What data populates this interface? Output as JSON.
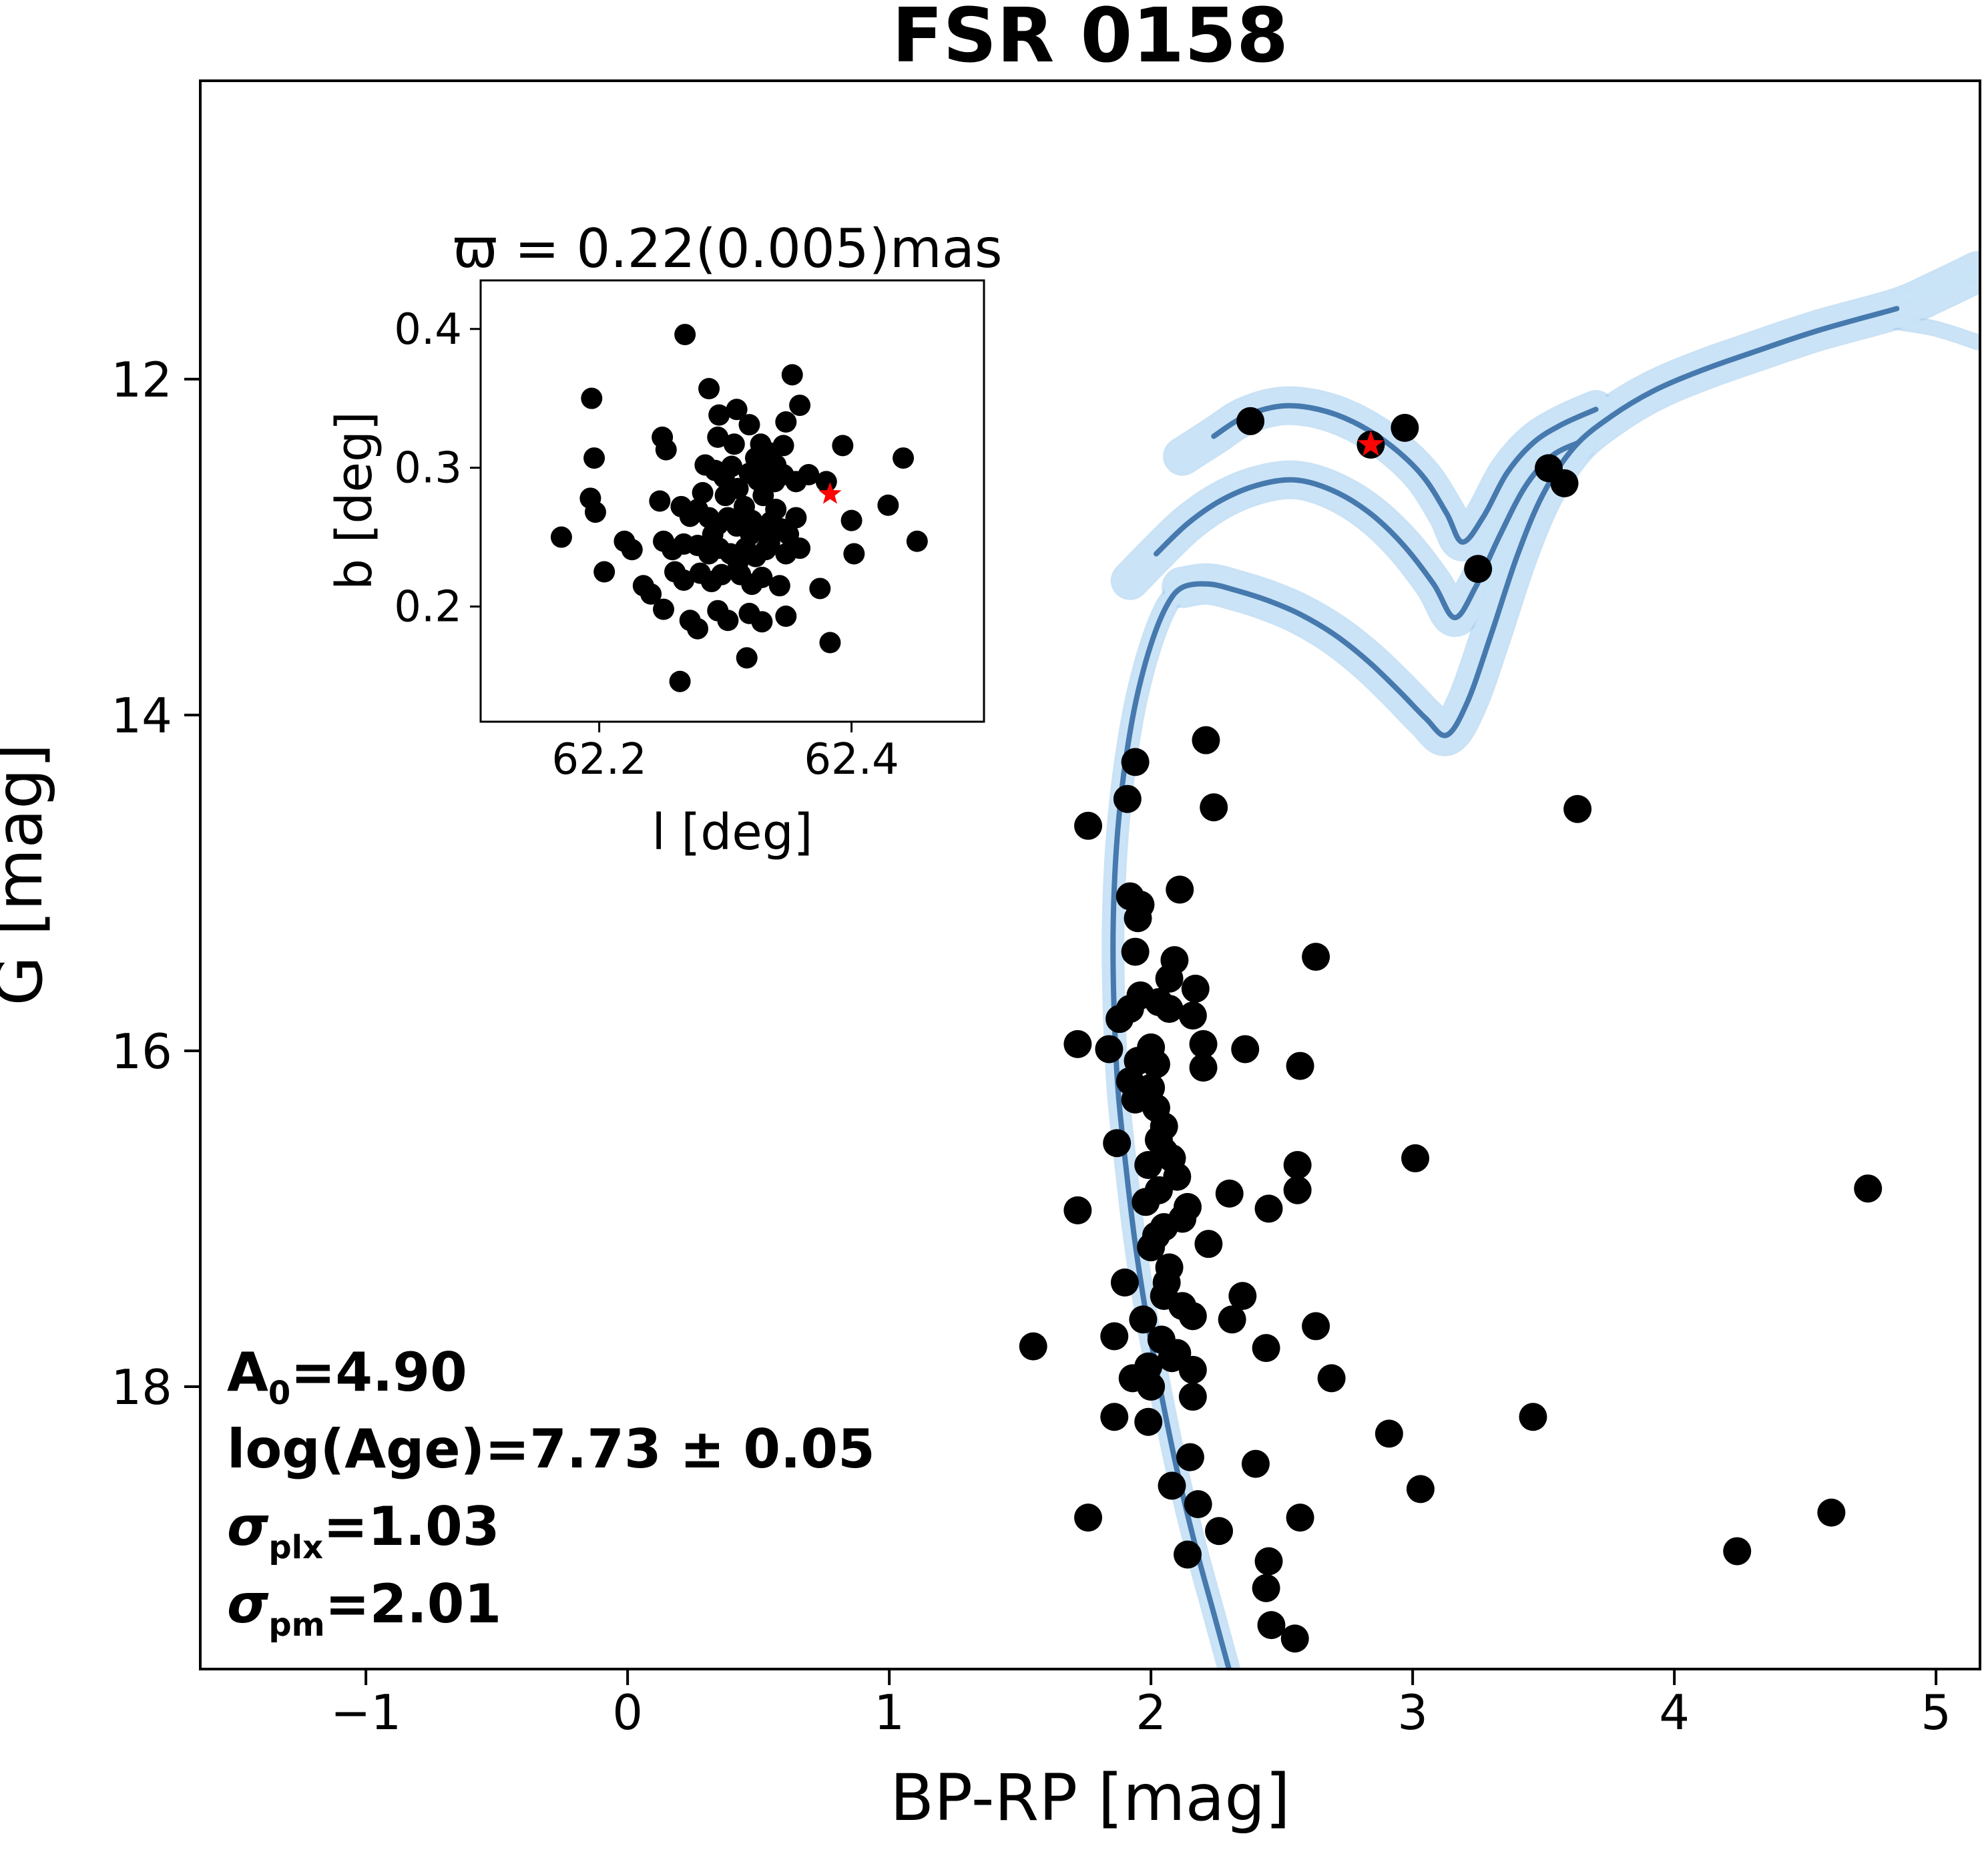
{
  "title": "FSR 0158",
  "colors": {
    "background": "#ffffff",
    "marker": "#000000",
    "star": "#fb0505",
    "isochrone_line": "#4679ad",
    "isochrone_band": "#c9e3f7",
    "isochrone_band_edge": "#9fcbed",
    "axis": "#000000"
  },
  "fit_parameters": {
    "A0": "4.90",
    "log_age": "7.73 ± 0.05",
    "sigma_plx": "1.03",
    "sigma_pm": "2.01",
    "lines": [
      [
        {
          "text": "A"
        },
        {
          "text": "0",
          "sub": true
        },
        {
          "text": "=4.90"
        }
      ],
      [
        {
          "text": "log(Age)=7.73 ± 0.05"
        }
      ],
      [
        {
          "text": "σ",
          "italic": true
        },
        {
          "text": "plx",
          "sub": true
        },
        {
          "text": "=1.03"
        }
      ],
      [
        {
          "text": "σ",
          "italic": true
        },
        {
          "text": "pm",
          "sub": true
        },
        {
          "text": "=2.01"
        }
      ]
    ]
  },
  "chart_data": [
    {
      "type": "scatter",
      "name": "color-magnitude-diagram",
      "title": "FSR 0158",
      "xlabel": "BP-RP [mag]",
      "ylabel": "G [mag]",
      "xlim": [
        -1.633,
        5.168
      ],
      "ylim": [
        19.682,
        10.223
      ],
      "y_inverted": true,
      "grid": false,
      "xticks": {
        "values": [
          -1,
          0,
          1,
          2,
          3,
          4,
          5
        ],
        "labels": [
          "−1",
          "0",
          "1",
          "2",
          "3",
          "4",
          "5"
        ]
      },
      "yticks": {
        "values": [
          12,
          14,
          16,
          18
        ],
        "labels": [
          "12",
          "14",
          "16",
          "18"
        ]
      },
      "cluster_star": {
        "x": 2.84,
        "y": 12.39
      },
      "points": [
        [
          2.38,
          12.25
        ],
        [
          2.97,
          12.29
        ],
        [
          3.52,
          12.53
        ],
        [
          3.58,
          12.62
        ],
        [
          3.25,
          13.13
        ],
        [
          2.21,
          14.15
        ],
        [
          1.94,
          14.28
        ],
        [
          1.76,
          14.66
        ],
        [
          1.91,
          14.5
        ],
        [
          2.24,
          14.55
        ],
        [
          3.63,
          14.56
        ],
        [
          2.11,
          15.04
        ],
        [
          1.92,
          15.08
        ],
        [
          1.96,
          15.13
        ],
        [
          1.95,
          15.21
        ],
        [
          1.94,
          15.41
        ],
        [
          2.09,
          15.46
        ],
        [
          2.63,
          15.44
        ],
        [
          2.07,
          15.57
        ],
        [
          2.17,
          15.63
        ],
        [
          1.96,
          15.67
        ],
        [
          2.03,
          15.71
        ],
        [
          1.92,
          15.75
        ],
        [
          2.07,
          15.75
        ],
        [
          2.16,
          15.79
        ],
        [
          1.88,
          15.81
        ],
        [
          1.72,
          15.96
        ],
        [
          1.84,
          15.99
        ],
        [
          2.36,
          15.99
        ],
        [
          2.2,
          15.96
        ],
        [
          2.0,
          15.98
        ],
        [
          1.95,
          16.06
        ],
        [
          2.02,
          16.08
        ],
        [
          2.2,
          16.1
        ],
        [
          2.57,
          16.09
        ],
        [
          1.92,
          16.18
        ],
        [
          2.0,
          16.22
        ],
        [
          1.94,
          16.29
        ],
        [
          2.02,
          16.34
        ],
        [
          1.87,
          16.55
        ],
        [
          2.03,
          16.53
        ],
        [
          2.08,
          16.64
        ],
        [
          1.99,
          16.68
        ],
        [
          2.05,
          16.45
        ],
        [
          2.05,
          16.6
        ],
        [
          2.03,
          16.83
        ],
        [
          2.14,
          16.93
        ],
        [
          2.3,
          16.85
        ],
        [
          2.45,
          16.94
        ],
        [
          2.56,
          16.68
        ],
        [
          2.56,
          16.83
        ],
        [
          3.01,
          16.64
        ],
        [
          1.72,
          16.95
        ],
        [
          2.1,
          16.75
        ],
        [
          1.98,
          16.9
        ],
        [
          2.05,
          17.05
        ],
        [
          2.0,
          17.17
        ],
        [
          2.22,
          17.15
        ],
        [
          2.12,
          17.0
        ],
        [
          2.02,
          17.1
        ],
        [
          2.07,
          17.29
        ],
        [
          1.9,
          17.38
        ],
        [
          2.05,
          17.46
        ],
        [
          2.35,
          17.46
        ],
        [
          2.06,
          17.38
        ],
        [
          2.16,
          17.58
        ],
        [
          2.31,
          17.6
        ],
        [
          1.86,
          17.7
        ],
        [
          2.63,
          17.64
        ],
        [
          2.44,
          17.77
        ],
        [
          1.55,
          17.76
        ],
        [
          2.12,
          17.52
        ],
        [
          1.97,
          17.6
        ],
        [
          2.04,
          17.72
        ],
        [
          2.08,
          17.83
        ],
        [
          2.16,
          17.9
        ],
        [
          1.93,
          17.95
        ],
        [
          2.0,
          18.0
        ],
        [
          2.69,
          17.95
        ],
        [
          2.1,
          17.8
        ],
        [
          1.99,
          17.88
        ],
        [
          2.16,
          18.06
        ],
        [
          1.86,
          18.18
        ],
        [
          1.99,
          18.21
        ],
        [
          2.91,
          18.28
        ],
        [
          3.46,
          18.18
        ],
        [
          2.15,
          18.42
        ],
        [
          2.4,
          18.46
        ],
        [
          3.03,
          18.61
        ],
        [
          2.08,
          18.59
        ],
        [
          2.18,
          18.7
        ],
        [
          1.76,
          18.78
        ],
        [
          2.26,
          18.86
        ],
        [
          2.57,
          18.78
        ],
        [
          2.14,
          19.0
        ],
        [
          2.45,
          19.04
        ],
        [
          2.44,
          19.2
        ],
        [
          2.46,
          19.42
        ],
        [
          2.55,
          19.5
        ],
        [
          4.74,
          16.82
        ],
        [
          4.24,
          18.98
        ],
        [
          4.6,
          18.75
        ]
      ],
      "isochrones": {
        "ms": [
          [
            2.31,
            19.75
          ],
          [
            2.24,
            19.35
          ],
          [
            2.17,
            18.95
          ],
          [
            2.1,
            18.5
          ],
          [
            2.04,
            18.05
          ],
          [
            1.985,
            17.6
          ],
          [
            1.94,
            17.15
          ],
          [
            1.905,
            16.7
          ],
          [
            1.875,
            16.25
          ],
          [
            1.86,
            15.8
          ],
          [
            1.855,
            15.35
          ],
          [
            1.862,
            14.95
          ],
          [
            1.878,
            14.6
          ],
          [
            1.905,
            14.25
          ],
          [
            1.945,
            13.9
          ],
          [
            2.0,
            13.58
          ],
          [
            2.06,
            13.35
          ],
          [
            2.12,
            13.24
          ]
        ],
        "wiggle_low": [
          [
            2.12,
            13.24
          ],
          [
            2.22,
            13.22
          ],
          [
            2.33,
            13.26
          ],
          [
            2.45,
            13.32
          ],
          [
            2.57,
            13.4
          ],
          [
            2.7,
            13.52
          ],
          [
            2.83,
            13.68
          ],
          [
            2.95,
            13.86
          ],
          [
            3.05,
            14.02
          ],
          [
            3.13,
            14.12
          ],
          [
            3.21,
            13.92
          ],
          [
            3.3,
            13.52
          ],
          [
            3.4,
            13.05
          ],
          [
            3.5,
            12.68
          ],
          [
            3.62,
            12.4
          ],
          [
            3.76,
            12.22
          ],
          [
            3.92,
            12.07
          ],
          [
            4.1,
            11.95
          ],
          [
            4.3,
            11.84
          ],
          [
            4.55,
            11.71
          ],
          [
            4.85,
            11.58
          ]
        ],
        "wiggle_mid": [
          [
            2.02,
            13.04
          ],
          [
            2.14,
            12.86
          ],
          [
            2.27,
            12.72
          ],
          [
            2.41,
            12.63
          ],
          [
            2.55,
            12.6
          ],
          [
            2.69,
            12.66
          ],
          [
            2.83,
            12.79
          ],
          [
            2.96,
            12.98
          ],
          [
            3.08,
            13.22
          ],
          [
            3.16,
            13.42
          ],
          [
            3.24,
            13.24
          ],
          [
            3.33,
            12.94
          ],
          [
            3.43,
            12.64
          ],
          [
            3.53,
            12.46
          ],
          [
            3.63,
            12.38
          ]
        ],
        "wiggle_top": [
          [
            2.24,
            12.34
          ],
          [
            2.36,
            12.22
          ],
          [
            2.5,
            12.16
          ],
          [
            2.64,
            12.18
          ],
          [
            2.78,
            12.26
          ],
          [
            2.92,
            12.4
          ],
          [
            3.04,
            12.58
          ],
          [
            3.13,
            12.8
          ],
          [
            3.19,
            12.97
          ],
          [
            3.27,
            12.82
          ],
          [
            3.36,
            12.56
          ],
          [
            3.46,
            12.38
          ],
          [
            3.57,
            12.27
          ],
          [
            3.7,
            12.18
          ]
        ],
        "band_ext_right_low": [
          [
            4.85,
            11.66
          ],
          [
            5.0,
            11.7
          ],
          [
            5.16,
            11.78
          ]
        ],
        "band_ext_right_high": [
          [
            4.85,
            11.52
          ],
          [
            5.0,
            11.46
          ],
          [
            5.16,
            11.36
          ]
        ],
        "band_ext_left_top": [
          [
            2.12,
            12.46
          ],
          [
            2.24,
            12.34
          ]
        ],
        "band_ext_left_mid": [
          [
            1.92,
            13.2
          ],
          [
            2.02,
            13.04
          ]
        ]
      }
    },
    {
      "type": "scatter",
      "name": "sky-position-inset",
      "title": "ϖ = 0.22(0.005)mas",
      "xlabel": "l [deg]",
      "ylabel": "b [deg]",
      "xlim": [
        62.106,
        62.505
      ],
      "ylim": [
        0.117,
        0.435
      ],
      "grid": false,
      "xticks": {
        "values": [
          62.2,
          62.4
        ],
        "labels": [
          "62.2",
          "62.4"
        ]
      },
      "yticks": {
        "values": [
          0.2,
          0.3,
          0.4
        ],
        "labels": [
          "0.2",
          "0.3",
          "0.4"
        ]
      },
      "cluster_star": {
        "x": 62.383,
        "y": 0.281
      },
      "points": [
        [
          62.268,
          0.396
        ],
        [
          62.353,
          0.367
        ],
        [
          62.287,
          0.357
        ],
        [
          62.194,
          0.35
        ],
        [
          62.359,
          0.345
        ],
        [
          62.295,
          0.338
        ],
        [
          62.309,
          0.342
        ],
        [
          62.319,
          0.331
        ],
        [
          62.348,
          0.333
        ],
        [
          62.25,
          0.322
        ],
        [
          62.253,
          0.313
        ],
        [
          62.294,
          0.322
        ],
        [
          62.307,
          0.317
        ],
        [
          62.328,
          0.317
        ],
        [
          62.334,
          0.311
        ],
        [
          62.324,
          0.307
        ],
        [
          62.346,
          0.316
        ],
        [
          62.196,
          0.307
        ],
        [
          62.393,
          0.316
        ],
        [
          62.441,
          0.307
        ],
        [
          62.284,
          0.302
        ],
        [
          62.292,
          0.298
        ],
        [
          62.299,
          0.293
        ],
        [
          62.305,
          0.301
        ],
        [
          62.319,
          0.296
        ],
        [
          62.326,
          0.291
        ],
        [
          62.332,
          0.296
        ],
        [
          62.339,
          0.29
        ],
        [
          62.346,
          0.295
        ],
        [
          62.356,
          0.29
        ],
        [
          62.366,
          0.295
        ],
        [
          62.38,
          0.29
        ],
        [
          62.193,
          0.278
        ],
        [
          62.197,
          0.268
        ],
        [
          62.248,
          0.276
        ],
        [
          62.265,
          0.272
        ],
        [
          62.272,
          0.265
        ],
        [
          62.278,
          0.27
        ],
        [
          62.287,
          0.264
        ],
        [
          62.294,
          0.259
        ],
        [
          62.302,
          0.264
        ],
        [
          62.309,
          0.258
        ],
        [
          62.321,
          0.262
        ],
        [
          62.328,
          0.256
        ],
        [
          62.336,
          0.261
        ],
        [
          62.344,
          0.256
        ],
        [
          62.356,
          0.264
        ],
        [
          62.4,
          0.262
        ],
        [
          62.429,
          0.273
        ],
        [
          62.17,
          0.25
        ],
        [
          62.22,
          0.247
        ],
        [
          62.226,
          0.241
        ],
        [
          62.251,
          0.247
        ],
        [
          62.258,
          0.241
        ],
        [
          62.267,
          0.245
        ],
        [
          62.278,
          0.244
        ],
        [
          62.287,
          0.238
        ],
        [
          62.295,
          0.242
        ],
        [
          62.304,
          0.238
        ],
        [
          62.316,
          0.242
        ],
        [
          62.324,
          0.236
        ],
        [
          62.332,
          0.241
        ],
        [
          62.348,
          0.238
        ],
        [
          62.359,
          0.242
        ],
        [
          62.402,
          0.238
        ],
        [
          62.452,
          0.247
        ],
        [
          62.204,
          0.225
        ],
        [
          62.235,
          0.215
        ],
        [
          62.241,
          0.209
        ],
        [
          62.26,
          0.225
        ],
        [
          62.267,
          0.219
        ],
        [
          62.28,
          0.224
        ],
        [
          62.289,
          0.218
        ],
        [
          62.297,
          0.223
        ],
        [
          62.312,
          0.223
        ],
        [
          62.321,
          0.216
        ],
        [
          62.329,
          0.221
        ],
        [
          62.343,
          0.215
        ],
        [
          62.375,
          0.213
        ],
        [
          62.251,
          0.198
        ],
        [
          62.272,
          0.19
        ],
        [
          62.278,
          0.184
        ],
        [
          62.294,
          0.197
        ],
        [
          62.302,
          0.19
        ],
        [
          62.319,
          0.195
        ],
        [
          62.329,
          0.189
        ],
        [
          62.348,
          0.193
        ],
        [
          62.383,
          0.174
        ],
        [
          62.317,
          0.163
        ],
        [
          62.264,
          0.146
        ],
        [
          62.31,
          0.285
        ],
        [
          62.315,
          0.272
        ],
        [
          62.33,
          0.28
        ],
        [
          62.3,
          0.28
        ],
        [
          62.34,
          0.27
        ],
        [
          62.32,
          0.252
        ],
        [
          62.335,
          0.246
        ],
        [
          62.35,
          0.252
        ],
        [
          62.31,
          0.232
        ],
        [
          62.29,
          0.252
        ],
        [
          62.282,
          0.282
        ],
        [
          62.34,
          0.302
        ]
      ]
    }
  ]
}
